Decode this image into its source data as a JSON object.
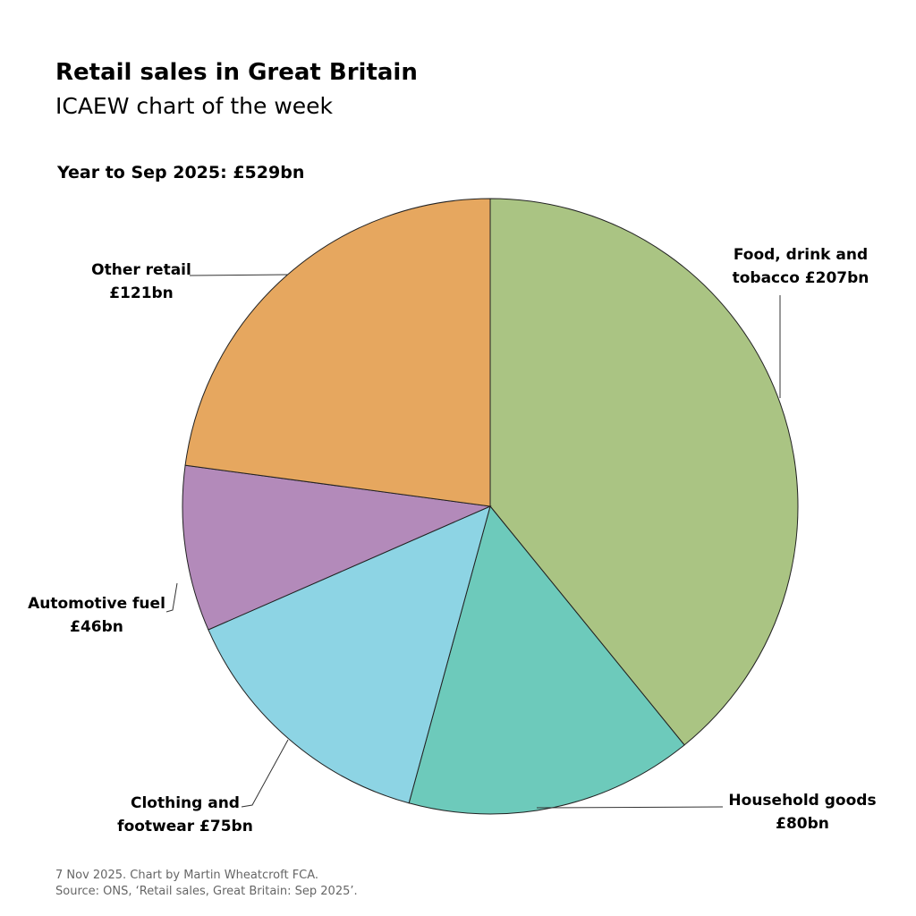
{
  "title": "Retail sales in Great Britain",
  "subtitle": "ICAEW chart of the week",
  "total_label": "Year to Sep 2025: £529bn",
  "footer": {
    "line1": "7 Nov 2025.   Chart by Martin Wheatcroft FCA.",
    "line2": "Source: ONS, ‘Retail sales, Great Britain: Sep 2025’."
  },
  "chart_data": {
    "type": "pie",
    "title": "Retail sales in Great Britain",
    "subtitle": "Year to Sep 2025: £529bn",
    "unit": "£bn",
    "start": "top",
    "direction": "clockwise",
    "slices": [
      {
        "name": "Food, drink and tobacco",
        "value": 207,
        "label_lines": [
          "Food, drink and",
          "tobacco £207bn"
        ],
        "color": "#aac483"
      },
      {
        "name": "Household goods",
        "value": 80,
        "label_lines": [
          "Household goods",
          "£80bn"
        ],
        "color": "#6dcabb"
      },
      {
        "name": "Clothing and footwear",
        "value": 75,
        "label_lines": [
          "Clothing and",
          "footwear £75bn"
        ],
        "color": "#8dd4e4"
      },
      {
        "name": "Automotive fuel",
        "value": 46,
        "label_lines": [
          "Automotive fuel",
          "£46bn"
        ],
        "color": "#b38aba"
      },
      {
        "name": "Other retail",
        "value": 121,
        "label_lines": [
          "Other retail",
          "£121bn"
        ],
        "color": "#e6a75f"
      }
    ]
  }
}
